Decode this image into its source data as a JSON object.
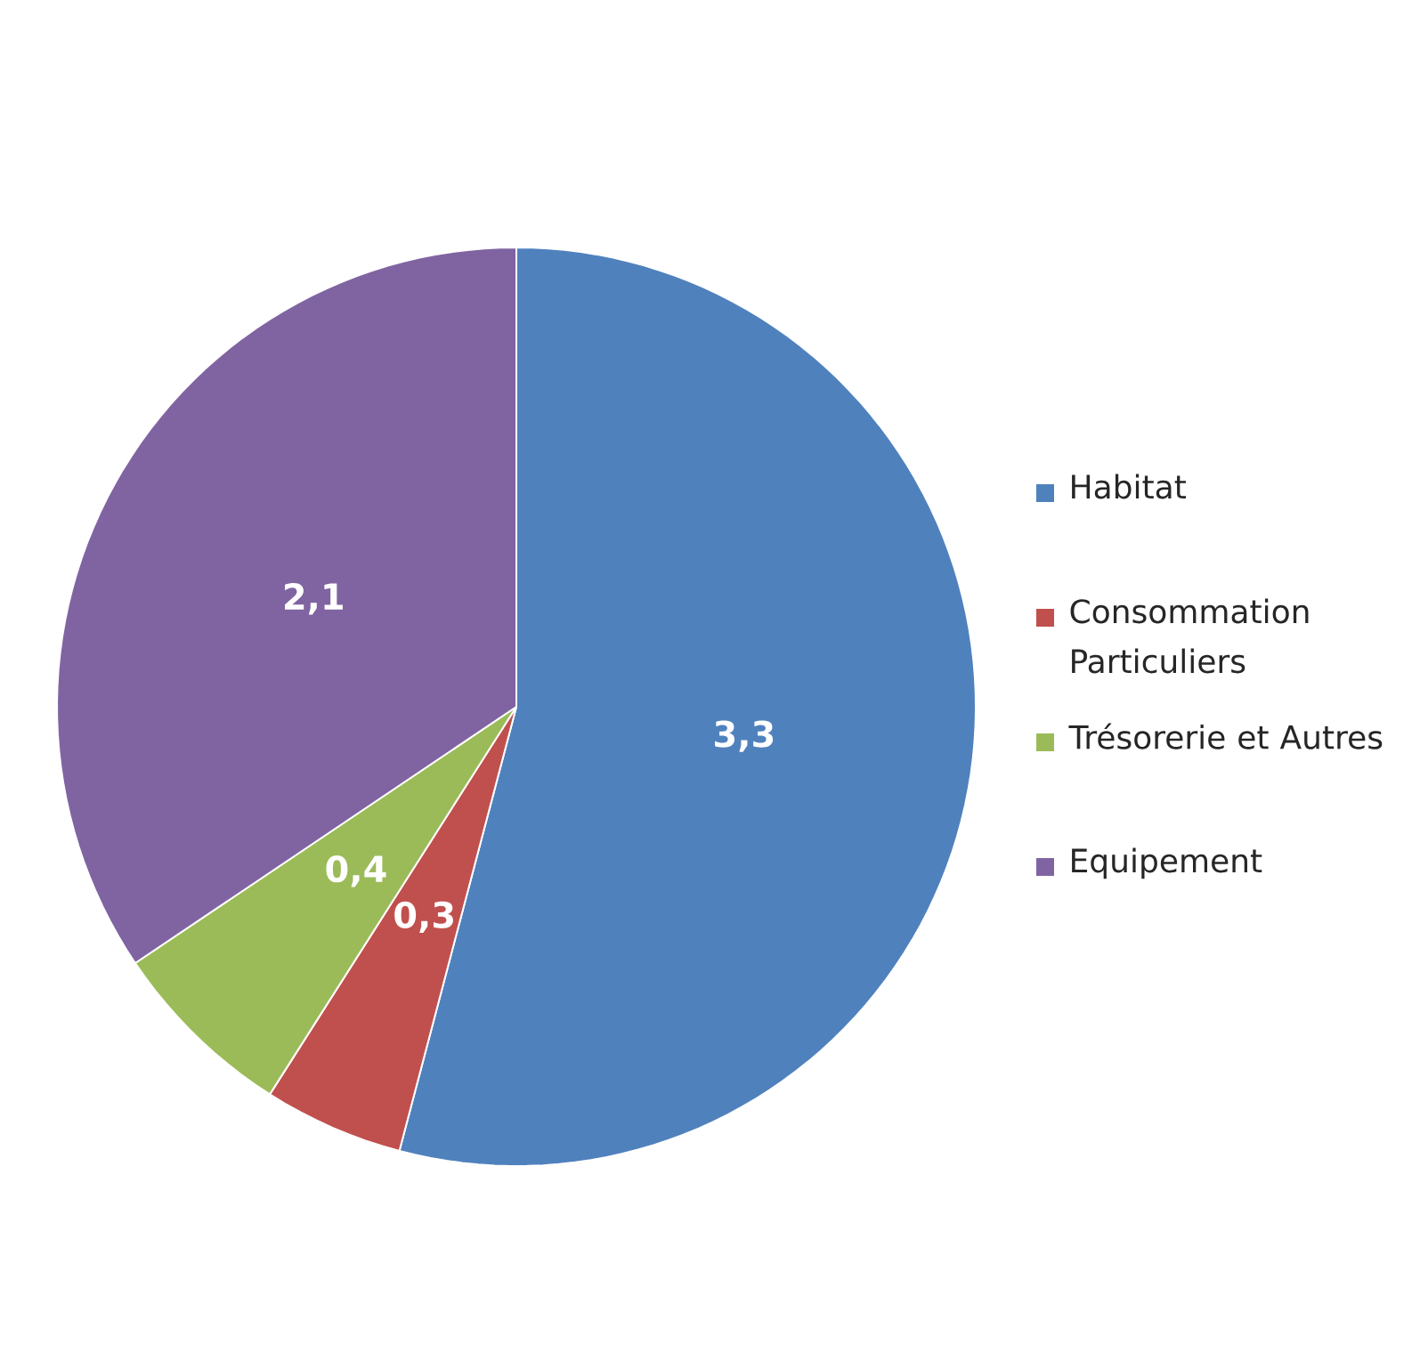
{
  "chart_data": {
    "type": "pie",
    "categories": [
      "Habitat",
      "Consommation Particuliers",
      "Trésorerie et Autres",
      "Equipement"
    ],
    "values": [
      3.3,
      0.3,
      0.4,
      2.1
    ],
    "value_labels": [
      "3,3",
      "0,3",
      "0,4",
      "2,1"
    ],
    "colors": [
      "#4f81bd",
      "#c0504d",
      "#9bbb59",
      "#8064a2"
    ],
    "legend": "right"
  }
}
